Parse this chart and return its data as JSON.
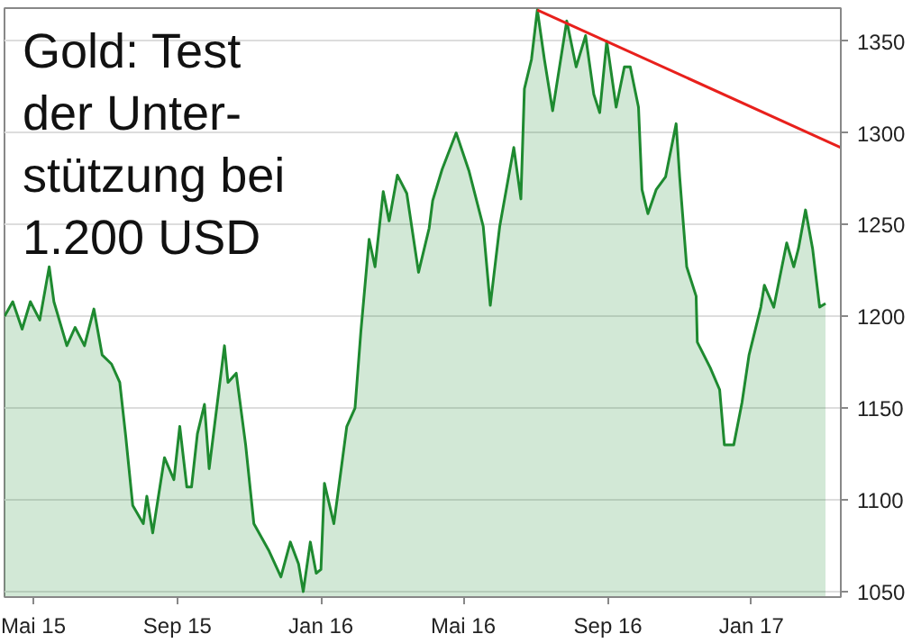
{
  "chart_data": {
    "type": "area",
    "title": "Gold: Test\nder Unter-\nstützung bei\n1.200 USD",
    "xlim": [
      "2015-04-07",
      "2017-03-18"
    ],
    "ylim": [
      1047,
      1368
    ],
    "xticks": [
      {
        "value": "2015-05-01",
        "label": "Mai 15"
      },
      {
        "value": "2015-09-01",
        "label": "Sep 15"
      },
      {
        "value": "2016-01-01",
        "label": "Jan 16"
      },
      {
        "value": "2016-05-01",
        "label": "Mai 16"
      },
      {
        "value": "2016-09-01",
        "label": "Sep 16"
      },
      {
        "value": "2017-01-01",
        "label": "Jan 17"
      }
    ],
    "yticks": [
      1050,
      1100,
      1150,
      1200,
      1250,
      1300,
      1350
    ],
    "grid": "y",
    "series": [
      {
        "color": "#1e8a30",
        "x": [
          "2015-04-07",
          "2015-04-14",
          "2015-04-22",
          "2015-04-29",
          "2015-05-07",
          "2015-05-15",
          "2015-05-19",
          "2015-05-30",
          "2015-06-06",
          "2015-06-14",
          "2015-06-22",
          "2015-06-29",
          "2015-07-07",
          "2015-07-14",
          "2015-07-19",
          "2015-07-25",
          "2015-08-03",
          "2015-08-06",
          "2015-08-11",
          "2015-08-21",
          "2015-08-29",
          "2015-09-03",
          "2015-09-09",
          "2015-09-13",
          "2015-09-18",
          "2015-09-24",
          "2015-09-28",
          "2015-10-11",
          "2015-10-14",
          "2015-10-21",
          "2015-10-29",
          "2015-11-05",
          "2015-11-18",
          "2015-11-28",
          "2015-12-06",
          "2015-12-13",
          "2015-12-17",
          "2015-12-23",
          "2015-12-28",
          "2016-01-01",
          "2016-01-04",
          "2016-01-12",
          "2016-01-16",
          "2016-01-23",
          "2016-01-30",
          "2016-02-04",
          "2016-02-11",
          "2016-02-16",
          "2016-02-23",
          "2016-02-28",
          "2016-03-06",
          "2016-03-14",
          "2016-03-24",
          "2016-04-02",
          "2016-04-05",
          "2016-04-13",
          "2016-04-25",
          "2016-05-06",
          "2016-05-18",
          "2016-05-24",
          "2016-06-01",
          "2016-06-13",
          "2016-06-19",
          "2016-06-22",
          "2016-06-28",
          "2016-07-03",
          "2016-07-09",
          "2016-07-16",
          "2016-07-28",
          "2016-08-05",
          "2016-08-13",
          "2016-08-20",
          "2016-08-25",
          "2016-08-31",
          "2016-09-08",
          "2016-09-15",
          "2016-09-20",
          "2016-09-27",
          "2016-09-30",
          "2016-10-05",
          "2016-10-12",
          "2016-10-20",
          "2016-10-29",
          "2016-11-01",
          "2016-11-07",
          "2016-11-15",
          "2016-11-16",
          "2016-11-27",
          "2016-12-05",
          "2016-12-09",
          "2016-12-17",
          "2016-12-24",
          "2016-12-30",
          "2017-01-09",
          "2017-01-12",
          "2017-01-20",
          "2017-01-31",
          "2017-02-06",
          "2017-02-10",
          "2017-02-16",
          "2017-02-22",
          "2017-02-28",
          "2017-03-05"
        ],
        "values": [
          1200,
          1208,
          1193,
          1208,
          1198,
          1227,
          1208,
          1184,
          1194,
          1184,
          1204,
          1179,
          1174,
          1164,
          1135,
          1097,
          1087,
          1102,
          1082,
          1123,
          1111,
          1140,
          1107,
          1107,
          1136,
          1152,
          1117,
          1184,
          1164,
          1169,
          1130,
          1087,
          1072,
          1058,
          1077,
          1065,
          1050,
          1077,
          1060,
          1062,
          1109,
          1087,
          1106,
          1140,
          1150,
          1192,
          1242,
          1227,
          1268,
          1252,
          1277,
          1267,
          1224,
          1248,
          1263,
          1280,
          1300,
          1279,
          1249,
          1206,
          1249,
          1292,
          1264,
          1324,
          1340,
          1367,
          1340,
          1312,
          1361,
          1336,
          1353,
          1321,
          1311,
          1350,
          1314,
          1336,
          1336,
          1314,
          1269,
          1256,
          1269,
          1276,
          1305,
          1276,
          1227,
          1211,
          1186,
          1172,
          1160,
          1130,
          1130,
          1153,
          1179,
          1205,
          1217,
          1205,
          1240,
          1227,
          1237,
          1258,
          1237,
          1205,
          1207
        ]
      },
      {
        "type": "line",
        "color": "#e8201c",
        "x": [
          "2016-07-03",
          "2017-03-18"
        ],
        "values": [
          1367,
          1292
        ]
      }
    ]
  }
}
